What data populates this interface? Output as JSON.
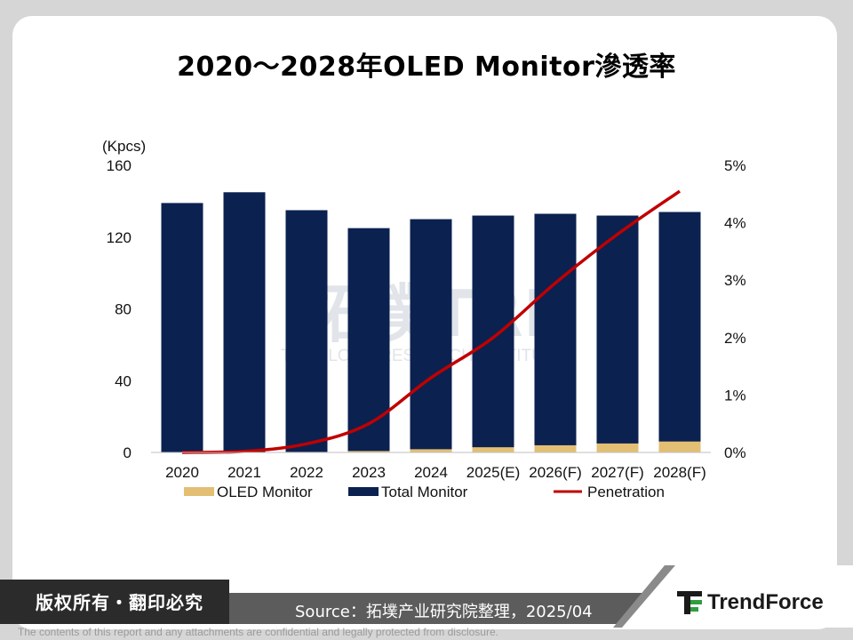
{
  "title": "2020～2028年OLED Monitor滲透率",
  "chart_data": {
    "type": "bar+line",
    "categories": [
      "2020",
      "2021",
      "2022",
      "2023",
      "2024",
      "2025(E)",
      "2026(F)",
      "2027(F)",
      "2028(F)"
    ],
    "series": [
      {
        "name": "OLED Monitor",
        "axis": "left",
        "values": [
          0.05,
          0.1,
          0.3,
          0.8,
          1.8,
          2.9,
          4.0,
          5.0,
          6.1
        ]
      },
      {
        "name": "Total Monitor",
        "axis": "left",
        "values": [
          139,
          145,
          135,
          125,
          130,
          132,
          133,
          132,
          134
        ]
      },
      {
        "name": "Penetration",
        "axis": "right",
        "values": [
          0.0,
          0.02,
          0.15,
          0.5,
          1.3,
          2.0,
          2.95,
          3.8,
          4.55
        ]
      }
    ],
    "ylabel_left": "(Kpcs)",
    "ylim_left": [
      0,
      160
    ],
    "yticks_left": [
      "0",
      "40",
      "80",
      "120",
      "160"
    ],
    "ylim_right": [
      0,
      5
    ],
    "yticks_right": [
      "0%",
      "1%",
      "2%",
      "3%",
      "4%",
      "5%"
    ],
    "legend": [
      "OLED Monitor",
      "Total Monitor",
      "Penetration"
    ],
    "legend_position": "bottom",
    "colors": {
      "oled": "#e3bf73",
      "total": "#0b2150",
      "penetration": "#c00000"
    }
  },
  "watermark": {
    "logo": "拓墣TRI",
    "subtitle": "TOPOLOGY RESEARCH INSTITUTE"
  },
  "footer": {
    "copyright": "版权所有・翻印必究",
    "source": "Source：拓墣产业研究院整理，2025/04",
    "brand": "TrendForce",
    "disclaimer": "The contents of this report and any attachments are confidential and legally protected from disclosure."
  }
}
